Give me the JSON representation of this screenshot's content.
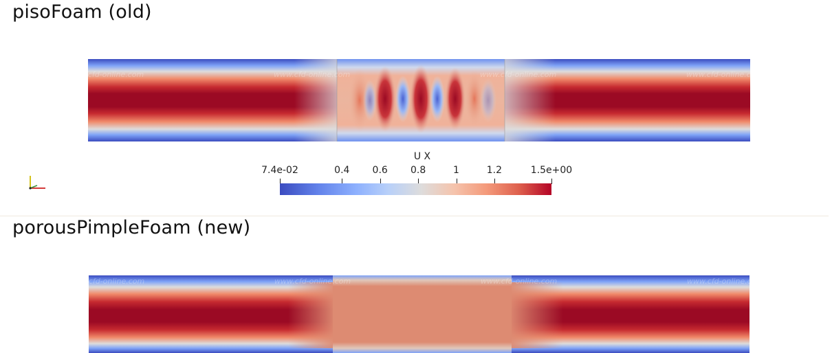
{
  "panels": {
    "old": {
      "title": "pisoFoam (old)"
    },
    "new": {
      "title": "porousPimpleFoam (new)"
    }
  },
  "colorbar": {
    "title": "U X",
    "ticks": [
      "7.4e-02",
      "0.4",
      "0.6",
      "0.8",
      "1",
      "1.2",
      "1.5e+00"
    ],
    "tick_values": [
      0.074,
      0.4,
      0.6,
      0.8,
      1.0,
      1.2,
      1.5
    ],
    "range": [
      0.074,
      1.5
    ],
    "colormap": [
      "#3b4cc0",
      "#6282ea",
      "#8db0fe",
      "#b8d0f9",
      "#dddcdc",
      "#f5c4ad",
      "#f49a7b",
      "#de604d",
      "#b40426"
    ]
  },
  "watermark": "www.cfd-online.com",
  "colors": {
    "low": "#3b4cc0",
    "mid": "#dddcdc",
    "high": "#9b0a24",
    "porous_zone_new": "#dd8b72"
  }
}
